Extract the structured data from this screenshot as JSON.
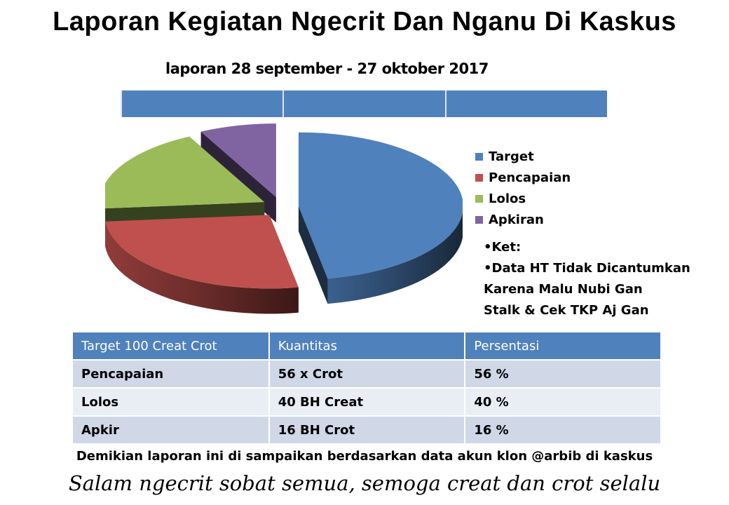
{
  "header": {
    "title": "Laporan Kegiatan Ngecrit Dan Nganu Di Kaskus",
    "subtitle": "laporan 28 september - 27 oktober 2017"
  },
  "chart_data": {
    "type": "pie",
    "title": "",
    "categories": [
      "Target",
      "Pencapaian",
      "Lolos",
      "Apkiran"
    ],
    "values": [
      100,
      56,
      40,
      16
    ],
    "colors": [
      "#4f81bd",
      "#c0504d",
      "#9bbb59",
      "#8064a2"
    ],
    "legend_position": "right"
  },
  "legend": {
    "items": [
      {
        "label": "Target",
        "color": "#4f81bd"
      },
      {
        "label": "Pencapaian",
        "color": "#c0504d"
      },
      {
        "label": "Lolos",
        "color": "#9bbb59"
      },
      {
        "label": "Apkiran",
        "color": "#8064a2"
      }
    ]
  },
  "note": {
    "line1": "•Ket:",
    "line2": "•Data HT Tidak Dicantumkan",
    "line3": "Karena Malu Nubi Gan",
    "line4": "Stalk & Cek TKP Aj Gan"
  },
  "table": {
    "headers": [
      "Target 100 Creat Crot",
      " Kuantitas",
      "Persentasi"
    ],
    "rows": [
      [
        "Pencapaian",
        "56 x Crot",
        "56 %"
      ],
      [
        "Lolos",
        "40 BH Creat",
        "40 %"
      ],
      [
        "Apkir",
        "16 BH Crot",
        "16 %"
      ]
    ]
  },
  "footer": {
    "line1": "Demikian laporan ini di sampaikan berdasarkan data akun klon @arbib di kaskus",
    "line2": "Salam ngecrit sobat semua, semoga creat dan crot selalu"
  }
}
